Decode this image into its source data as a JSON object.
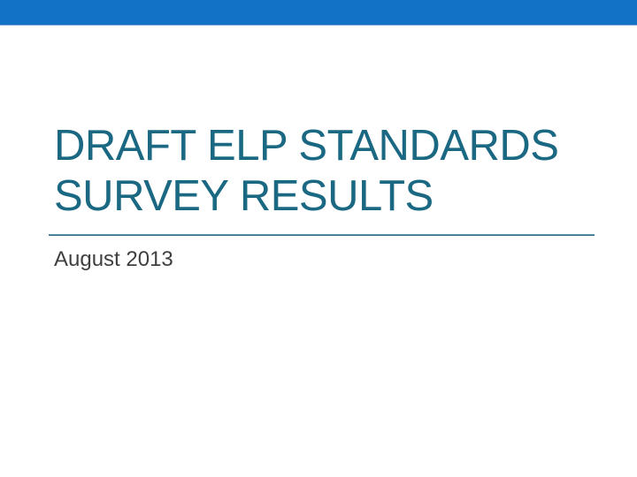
{
  "slide": {
    "title_lines": [
      "DRAFT ELP STANDARDS",
      "SURVEY RESULTS"
    ],
    "subtitle": "August 2013",
    "colors": {
      "background": "#FFFFFF",
      "top_bar": "#1272C6",
      "top_bar_bottom_edge": "#86ABD4",
      "title_text": "#1B6883",
      "rule_top": "#74A7BC",
      "rule_bottom": "#1E6078",
      "subtitle_text": "#3F3F3F"
    }
  }
}
